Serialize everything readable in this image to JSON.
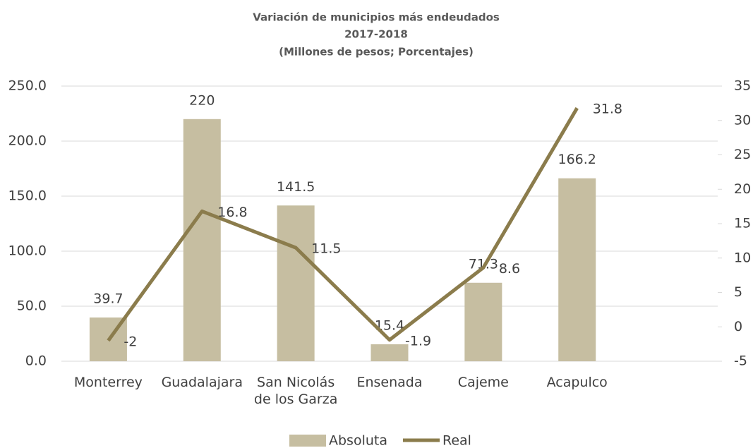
{
  "chart_data": {
    "type": "bar+line",
    "title": "Variación de municipios más endeudados",
    "subtitle": "2017-2018",
    "units": "(Millones de pesos; Porcentajes)",
    "categories": [
      "Monterrey",
      "Guadalajara",
      "San Nicolás de los Garza",
      "Ensenada",
      "Cajeme",
      "Acapulco",
      null
    ],
    "series": [
      {
        "name": "Absoluta",
        "type": "bar",
        "color": "#c6bea1",
        "values": [
          39.7,
          220,
          141.5,
          15.4,
          71.3,
          166.2,
          null
        ]
      },
      {
        "name": "Real",
        "type": "line",
        "axis": "y2",
        "color": "#8b7c4c",
        "values": [
          -2,
          16.8,
          11.5,
          -1.9,
          8.6,
          31.8,
          null
        ]
      }
    ],
    "ylim": [
      0,
      250
    ],
    "yticks": [
      {
        "value": 0,
        "label": "0.0"
      },
      {
        "value": 50,
        "label": "50.0"
      },
      {
        "value": 100,
        "label": "100.0"
      },
      {
        "value": 150,
        "label": "150.0"
      },
      {
        "value": 200,
        "label": "200.0"
      },
      {
        "value": 250,
        "label": "250.0"
      }
    ],
    "y2lim": [
      -5,
      35
    ],
    "y2ticks": [
      -5,
      0,
      5,
      10,
      15,
      20,
      25,
      30,
      35
    ],
    "grid": true,
    "legend": "bottom"
  }
}
